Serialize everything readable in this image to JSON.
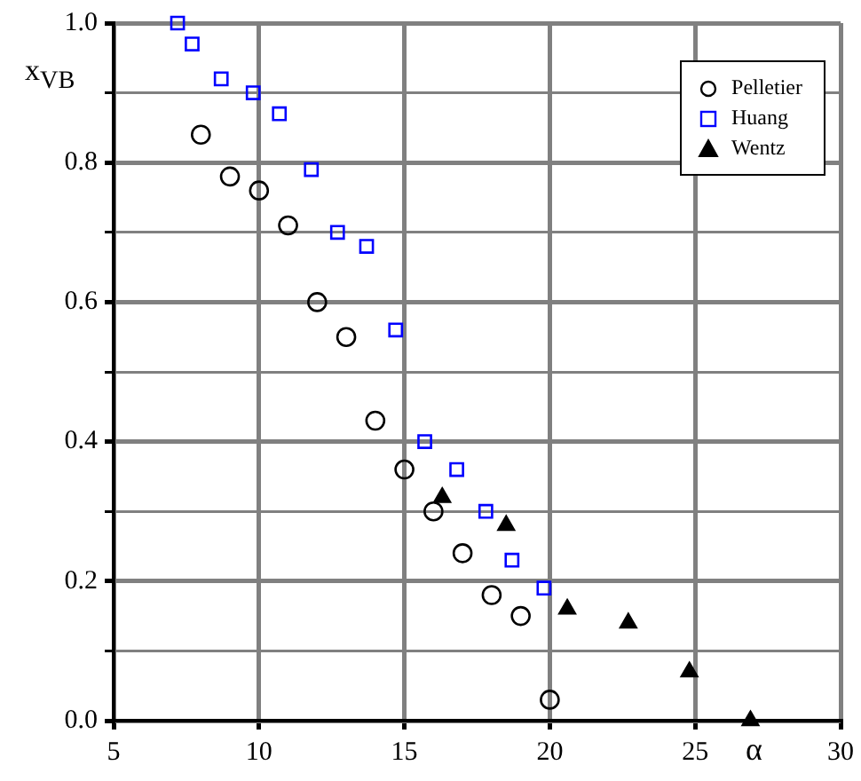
{
  "chart_data": {
    "type": "scatter",
    "xlabel": "α",
    "ylabel": "x$_{VB}$",
    "xlim": [
      5,
      30
    ],
    "xticks": [
      5,
      10,
      15,
      20,
      25,
      30
    ],
    "ylim": [
      0,
      1
    ],
    "yticks": [
      {
        "value": 0,
        "label": "0.0"
      },
      {
        "value": 0.1,
        "label": null
      },
      0.2,
      {
        "value": 0.3,
        "label": null
      },
      0.4,
      {
        "value": 0.5,
        "label": null
      },
      0.6,
      {
        "value": 0.7,
        "label": null
      },
      0.8,
      {
        "value": 0.9,
        "label": null
      },
      {
        "value": 1,
        "label": "1.0"
      }
    ],
    "grid": true,
    "legend": "top right",
    "series": [
      {
        "name": "Pelletier",
        "color": "#000000",
        "marker": "circle",
        "x": [
          8,
          9,
          10,
          11,
          12,
          13,
          14,
          15,
          16,
          17,
          18,
          19,
          20
        ],
        "values": [
          0.84,
          0.78,
          0.76,
          0.71,
          0.6,
          0.55,
          0.43,
          0.36,
          0.3,
          0.24,
          0.18,
          0.15,
          0.03
        ]
      },
      {
        "name": "Huang",
        "color": "#0000ff",
        "marker": "square",
        "x": [
          7.2,
          7.7,
          8.7,
          9.8,
          10.7,
          11.8,
          12.7,
          13.7,
          14.7,
          15.7,
          16.8,
          17.8,
          18.7,
          19.8
        ],
        "values": [
          1.0,
          0.97,
          0.92,
          0.9,
          0.87,
          0.79,
          0.7,
          0.68,
          0.56,
          0.4,
          0.36,
          0.3,
          0.23,
          0.19
        ]
      },
      {
        "name": "Wentz",
        "color": "#000000",
        "marker": "triangle",
        "x": [
          16.3,
          18.5,
          20.6,
          22.7,
          24.8,
          26.9
        ],
        "values": [
          0.32,
          0.28,
          0.16,
          0.14,
          0.07,
          0.0
        ]
      }
    ]
  }
}
